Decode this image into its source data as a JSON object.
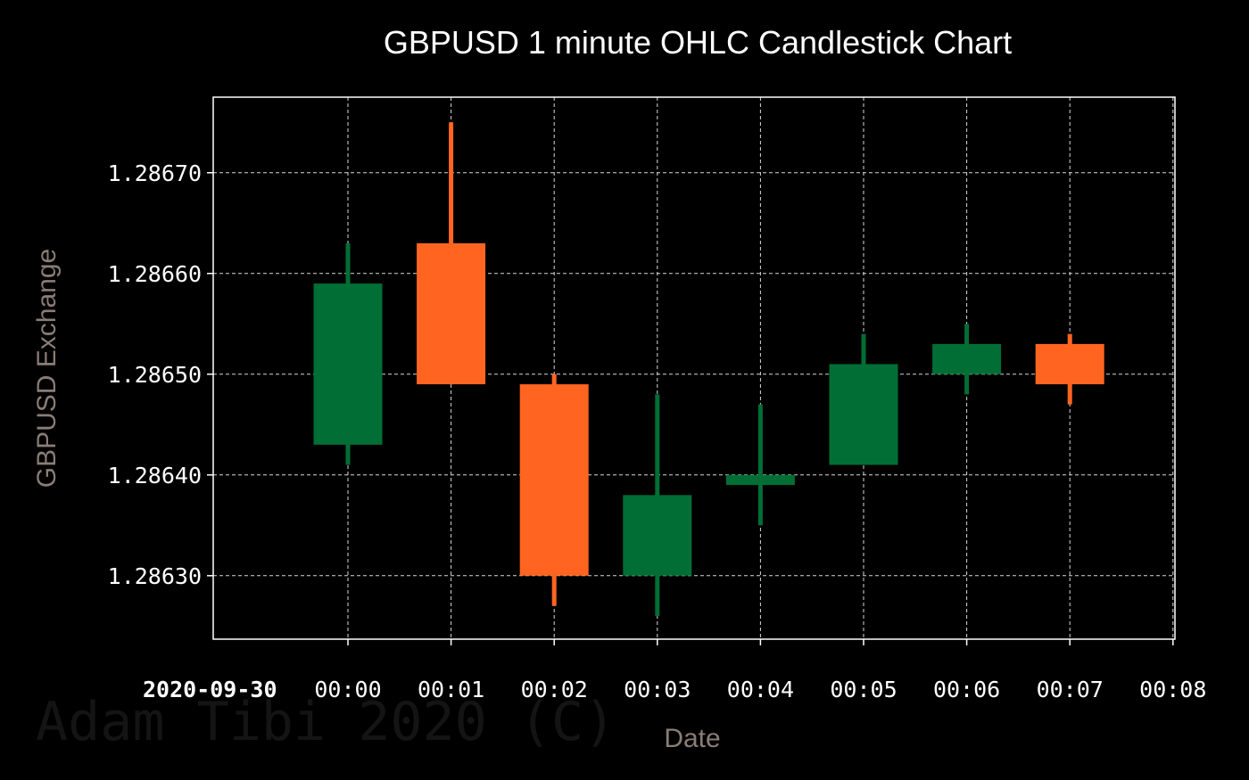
{
  "colors": {
    "background": "#000000",
    "frame": "#ffffff",
    "grid": "#d8d8d8",
    "text": "#ffffff",
    "axis_label": "#8a7d77",
    "watermark": "#141414",
    "up": "#006e35",
    "down": "#ff6520"
  },
  "watermark": "Adam Tibi 2020 (C)",
  "chart_data": {
    "type": "candlestick",
    "title": "GBPUSD 1 minute OHLC Candlestick Chart",
    "xlabel": "Date",
    "ylabel": "GBPUSD Exchange",
    "date_label": "2020-09-30",
    "x_ticks": [
      "00:00",
      "00:01",
      "00:02",
      "00:03",
      "00:04",
      "00:05",
      "00:06",
      "00:07",
      "00:08"
    ],
    "y_ticks": [
      "1.28630",
      "1.28640",
      "1.28650",
      "1.28660",
      "1.28670"
    ],
    "ylim": [
      1.286237,
      1.286775
    ],
    "grid": true,
    "series": [
      {
        "time": "00:00",
        "open": 1.28643,
        "high": 1.28663,
        "low": 1.28641,
        "close": 1.28659
      },
      {
        "time": "00:01",
        "open": 1.28663,
        "high": 1.28675,
        "low": 1.28649,
        "close": 1.28649
      },
      {
        "time": "00:02",
        "open": 1.28649,
        "high": 1.2865,
        "low": 1.28627,
        "close": 1.2863
      },
      {
        "time": "00:03",
        "open": 1.2863,
        "high": 1.28648,
        "low": 1.28626,
        "close": 1.28638
      },
      {
        "time": "00:04",
        "open": 1.28639,
        "high": 1.28647,
        "low": 1.28635,
        "close": 1.2864
      },
      {
        "time": "00:05",
        "open": 1.28641,
        "high": 1.28654,
        "low": 1.28641,
        "close": 1.28651
      },
      {
        "time": "00:06",
        "open": 1.2865,
        "high": 1.28655,
        "low": 1.28648,
        "close": 1.28653
      },
      {
        "time": "00:07",
        "open": 1.28653,
        "high": 1.28654,
        "low": 1.28647,
        "close": 1.28649
      }
    ]
  }
}
